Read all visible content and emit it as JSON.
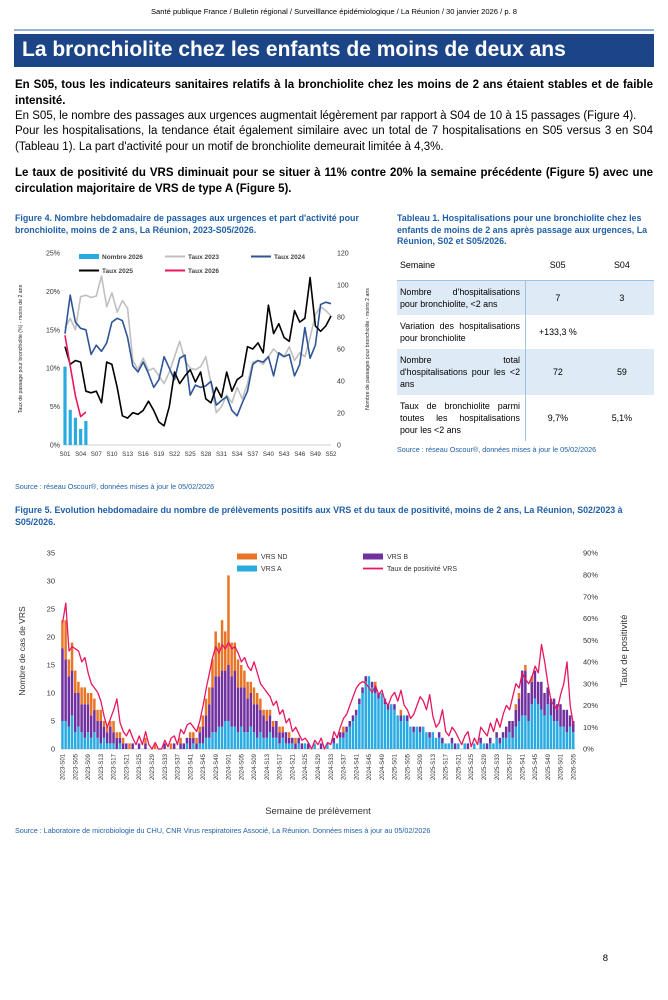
{
  "page": {
    "header": "Santé publique France / Bulletin régional / Surveilllance épidémiologique / La Réunion / 30 janvier 2026 / p. 8",
    "title": "La bronchiolite chez les enfants de moins de deux ans",
    "page_number": "8"
  },
  "paragraphs": [
    {
      "bold": true,
      "text": "En S05, tous les indicateurs sanitaires relatifs à la bronchiolite chez les moins de 2 ans étaient stables et de faible intensité."
    },
    {
      "bold": false,
      "text": "En S05, le nombre des passages aux urgences augmentait légèrement par rapport à S04 de 10 à 15 passages (Figure 4)."
    },
    {
      "bold": false,
      "text": "Pour les hospitalisations, la tendance était également similaire avec un total de 7 hospitalisations en S05 versus 3 en S04 (Tableau 1). La part d'activité pour un motif de bronchiolite demeurait limitée à 4,3%."
    },
    {
      "bold": true,
      "text": "Le taux de positivité du VRS diminuait pour se situer à 11% contre 20% la semaine précédente (Figure 5) avec une circulation majoritaire de VRS de type A (Figure 5)."
    }
  ],
  "figure4": {
    "title": "Figure 4. Nombre hebdomadaire de passages aux urgences et part d'activité pour bronchiolite, moins de 2 ans, La Réunion, 2023-S05/2026.",
    "source": "Source : réseau Oscour®, données mises à jour le 05/02/2026"
  },
  "table1": {
    "title": "Tableau 1. Hospitalisations pour une bronchiolite chez les enfants de moins de 2 ans après passage aux urgences, La Réunion, S02 et S05/2026.",
    "source": "Source : réseau Oscour®, données mises à jour le 05/02/2026",
    "columns": [
      "Semaine",
      "S05",
      "S04"
    ],
    "rows": [
      {
        "label": "Nombre d'hospitalisations pour bronchiolite, <2 ans",
        "s05": "7",
        "s04": "3"
      },
      {
        "label": "Variation des hospitalisations pour bronchiolite",
        "s05": "+133,3 %",
        "s04": ""
      },
      {
        "label": "Nombre total d'hospitalisations pour les <2 ans",
        "s05": "72",
        "s04": "59"
      },
      {
        "label": "Taux de bronchiolite parmi toutes les hospitalisations pour les <2 ans",
        "s05": "9,7%",
        "s04": "5,1%"
      }
    ]
  },
  "figure5": {
    "title": "Figure 5. Evolution hebdomadaire du nombre de prélèvements positifs aux VRS et du taux de positivité, moins de 2 ans, La Réunion, S02/2023 à S05/2026.",
    "source": "Source : Laboratoire de microbiologie du CHU, CNR Virus respiratoires Associé, La Réunion. Données mises à jour au 05/02/2026",
    "xlabel": "Semaine de prélèvement"
  },
  "colors": {
    "banner_bg": "#1C4587",
    "banner_line": "#95B3D7",
    "heading_blue": "#1F5FA9",
    "table_shade": "#DEEAF6",
    "table_line": "#9CC2E5",
    "cyan": "#29ABE2",
    "gray": "#BFBFBF",
    "navy": "#2F5597",
    "black": "#000000",
    "pink": "#E8175D",
    "orange": "#E87426",
    "purple": "#7030A0",
    "axis": "#BFBFBF",
    "tick_text": "#333333"
  },
  "chart_data": [
    {
      "id": "fig4",
      "type": "bar+line",
      "title": "Nombre hebdomadaire de passages aux urgences et part d'activité pour bronchiolite",
      "ylabel_left": "Taux de passage pour bronchiolite (%) - moins de 2 ans",
      "ylabel_right": "Nombre de passages pour bronchiolite - moins 2 ans",
      "ylim_left": [
        0,
        25
      ],
      "ytick_step_left": 5,
      "ylim_right": [
        0,
        120
      ],
      "ytick_step_right": 20,
      "x_tick_every": 3,
      "categories_spec": {
        "prefix": "S",
        "from": 1,
        "to": 52
      },
      "bar_series": {
        "name": "Nombre 2026",
        "axis": "right",
        "color_key": "cyan",
        "values": [
          49,
          22,
          17,
          10,
          15
        ]
      },
      "line_series": [
        {
          "name": "Taux 2023",
          "color_key": "gray",
          "values": [
            15.2,
            16.5,
            15.0,
            19.3,
            19.5,
            19.2,
            19.4,
            22.0,
            18.0,
            19.8,
            17.3,
            18.8,
            17.8,
            11.0,
            9.8,
            11.3,
            9.7,
            10.0,
            9.0,
            8.0,
            9.5,
            11.5,
            13.5,
            11.0,
            10.0,
            9.8,
            10.2,
            11.5,
            8.0,
            4.2,
            5.0,
            6.5,
            5.5,
            7.5,
            6.0,
            8.0,
            10.8,
            11.0,
            10.5,
            11.5,
            12.5,
            11.8,
            11.5,
            12.8,
            11.0,
            12.0,
            11.5,
            14.0,
            17.0,
            18.0,
            17.5,
            16.8
          ]
        },
        {
          "name": "Taux 2024",
          "color_key": "navy",
          "values": [
            14.5,
            19.5,
            16.0,
            15.2,
            15.0,
            11.8,
            13.0,
            12.2,
            13.3,
            16.0,
            16.5,
            16.2,
            14.0,
            10.3,
            9.5,
            10.8,
            9.3,
            7.5,
            8.5,
            11.5,
            10.0,
            8.5,
            11.3,
            11.7,
            6.5,
            7.8,
            7.5,
            7.7,
            8.3,
            5.2,
            5.8,
            6.3,
            4.5,
            3.8,
            5.5,
            7.0,
            10.5,
            11.0,
            10.8,
            11.5,
            9.0,
            12.0,
            11.5,
            11.8,
            9.0,
            10.5,
            15.3,
            11.3,
            13.0,
            18.3,
            18.6,
            18.4
          ]
        },
        {
          "name": "Taux 2025",
          "color_key": "black",
          "values": [
            12.8,
            10.5,
            11.0,
            10.8,
            7.0,
            6.8,
            7.0,
            5.5,
            10.8,
            10.5,
            7.5,
            3.8,
            3.5,
            4.2,
            4.0,
            4.5,
            5.7,
            4.5,
            3.0,
            2.5,
            5.0,
            9.5,
            8.0,
            9.0,
            9.8,
            8.2,
            9.5,
            6.0,
            5.5,
            7.5,
            6.2,
            9.5,
            7.0,
            8.5,
            9.0,
            12.8,
            12.5,
            13.3,
            12.0,
            18.2,
            14.5,
            15.8,
            14.0,
            13.5,
            17.5,
            16.0,
            16.5,
            21.8,
            15.5,
            14.8,
            15.5,
            16.8
          ]
        },
        {
          "name": "Taux 2026",
          "color_key": "pink",
          "values": [
            14.3,
            10.3,
            6.4,
            3.7,
            4.3
          ]
        }
      ]
    },
    {
      "id": "fig5",
      "type": "stacked-bar+line",
      "title": "Evolution hebdomadaire du nombre de prélèvements positifs aux VRS et du taux de positivité",
      "ylabel_left": "Nombre de cas de VRS",
      "ylabel_right": "Taux de positivité",
      "xlabel": "Semaine de prélèvement",
      "ylim_left": [
        0,
        35
      ],
      "ytick_step_left": 5,
      "ylim_right": [
        0,
        90
      ],
      "ytick_step_right": 10,
      "x_tick_every": 4,
      "years": [
        {
          "year": 2023,
          "weeks": 52
        },
        {
          "year": 2024,
          "weeks": 52
        },
        {
          "year": 2025,
          "weeks": 52
        },
        {
          "year": 2026,
          "weeks": 5
        }
      ],
      "bar_series": [
        {
          "name": "VRS A",
          "color_key": "cyan",
          "values": [
            5,
            5,
            4,
            6,
            3,
            4,
            3,
            2,
            3,
            2,
            3,
            2,
            1,
            2,
            1,
            1,
            1,
            0,
            1,
            0,
            0,
            0,
            0,
            0,
            0,
            0,
            0,
            0,
            0,
            0,
            0,
            0,
            0,
            0,
            0,
            0,
            0,
            0,
            0,
            1,
            0,
            1,
            0,
            1,
            1,
            2,
            2,
            3,
            3,
            4,
            4,
            5,
            5,
            4,
            4,
            3,
            4,
            3,
            3,
            4,
            3,
            2,
            3,
            2,
            2,
            3,
            2,
            2,
            1,
            2,
            1,
            1,
            1,
            0,
            1,
            0,
            1,
            0,
            0,
            1,
            0,
            0,
            0,
            1,
            0,
            1,
            1,
            2,
            2,
            3,
            4,
            5,
            6,
            8,
            10,
            12,
            13,
            11,
            10,
            9,
            10,
            8,
            7,
            8,
            7,
            6,
            5,
            6,
            5,
            4,
            3,
            4,
            3,
            4,
            3,
            2,
            3,
            2,
            2,
            1,
            1,
            1,
            1,
            0,
            1,
            0,
            1,
            0,
            0,
            1,
            0,
            1,
            1,
            0,
            1,
            1,
            2,
            1,
            2,
            2,
            3,
            2,
            4,
            5,
            6,
            6,
            5,
            8,
            9,
            8,
            7,
            6,
            8,
            6,
            5,
            5,
            4,
            4,
            3,
            4,
            3
          ]
        },
        {
          "name": "VRS B",
          "color_key": "purple",
          "values": [
            13,
            11,
            9,
            8,
            7,
            6,
            5,
            6,
            5,
            4,
            4,
            3,
            4,
            2,
            2,
            3,
            2,
            2,
            1,
            1,
            1,
            0,
            1,
            0,
            1,
            0,
            1,
            0,
            0,
            0,
            0,
            0,
            1,
            0,
            0,
            1,
            0,
            1,
            1,
            1,
            2,
            1,
            1,
            2,
            3,
            4,
            6,
            8,
            10,
            9,
            10,
            9,
            10,
            9,
            10,
            8,
            7,
            8,
            6,
            6,
            5,
            6,
            4,
            4,
            3,
            3,
            2,
            3,
            2,
            1,
            2,
            1,
            1,
            1,
            1,
            1,
            0,
            1,
            0,
            0,
            0,
            1,
            0,
            0,
            0,
            1,
            0,
            1,
            1,
            1,
            1,
            1,
            1,
            1,
            1,
            1,
            0,
            1,
            1,
            1,
            0,
            1,
            1,
            0,
            1,
            0,
            1,
            0,
            1,
            0,
            1,
            0,
            1,
            0,
            0,
            1,
            0,
            0,
            1,
            1,
            0,
            0,
            1,
            1,
            0,
            0,
            0,
            1,
            0,
            0,
            0,
            1,
            0,
            1,
            1,
            0,
            1,
            1,
            1,
            2,
            2,
            3,
            3,
            4,
            8,
            8,
            5,
            4,
            5,
            4,
            5,
            4,
            3,
            3,
            4,
            3,
            4,
            3,
            4,
            2,
            2
          ]
        },
        {
          "name": "VRS ND",
          "color_key": "orange",
          "values": [
            5,
            7,
            3,
            5,
            4,
            2,
            3,
            3,
            2,
            4,
            2,
            2,
            2,
            1,
            1,
            1,
            2,
            1,
            1,
            1,
            0,
            1,
            0,
            0,
            0,
            0,
            1,
            0,
            0,
            1,
            0,
            0,
            0,
            0,
            1,
            0,
            0,
            1,
            0,
            0,
            1,
            1,
            1,
            1,
            2,
            3,
            3,
            5,
            8,
            6,
            9,
            7,
            16,
            6,
            5,
            5,
            4,
            3,
            3,
            2,
            3,
            2,
            2,
            1,
            2,
            1,
            1,
            0,
            1,
            1,
            0,
            1,
            0,
            1,
            0,
            0,
            0,
            0,
            0,
            0,
            0,
            0,
            0,
            0,
            0,
            0,
            0,
            0,
            1,
            0,
            0,
            0,
            0,
            0,
            0,
            0,
            0,
            0,
            1,
            0,
            0,
            0,
            0,
            0,
            0,
            0,
            1,
            0,
            0,
            0,
            0,
            0,
            0,
            0,
            0,
            0,
            0,
            0,
            0,
            0,
            0,
            0,
            0,
            0,
            0,
            0,
            0,
            0,
            0,
            0,
            0,
            0,
            0,
            0,
            0,
            0,
            0,
            0,
            0,
            0,
            0,
            0,
            1,
            1,
            0,
            1,
            0,
            1,
            0,
            0,
            0,
            0,
            0,
            0,
            0,
            0,
            0,
            0,
            0,
            0,
            0
          ]
        }
      ],
      "line_series": {
        "name": "Taux de positivité VRS",
        "color_key": "pink",
        "values": [
          58,
          67,
          45,
          47,
          46,
          45,
          40,
          42,
          35,
          30,
          28,
          26,
          22,
          15,
          10,
          14,
          18,
          23,
          12,
          8,
          6,
          9,
          5,
          2,
          6,
          2,
          8,
          2,
          0,
          3,
          0,
          0,
          4,
          1,
          5,
          6,
          2,
          9,
          7,
          11,
          12,
          10,
          8,
          13,
          20,
          28,
          35,
          42,
          47,
          44,
          48,
          46,
          49,
          46,
          47,
          44,
          40,
          42,
          38,
          36,
          40,
          35,
          30,
          28,
          26,
          24,
          20,
          22,
          16,
          18,
          12,
          14,
          8,
          10,
          7,
          4,
          5,
          3,
          0,
          4,
          2,
          5,
          0,
          3,
          2,
          8,
          5,
          10,
          14,
          16,
          20,
          24,
          28,
          30,
          31,
          30,
          28,
          26,
          29,
          25,
          27,
          22,
          20,
          24,
          26,
          22,
          27,
          20,
          18,
          14,
          16,
          20,
          24,
          22,
          18,
          25,
          15,
          10,
          12,
          18,
          8,
          6,
          10,
          8,
          5,
          2,
          6,
          8,
          1,
          5,
          2,
          10,
          8,
          6,
          12,
          8,
          14,
          10,
          16,
          20,
          18,
          24,
          30,
          28,
          35,
          32,
          30,
          33,
          38,
          35,
          48,
          40,
          30,
          22,
          20,
          18,
          25,
          30,
          40,
          20,
          11
        ]
      }
    }
  ]
}
